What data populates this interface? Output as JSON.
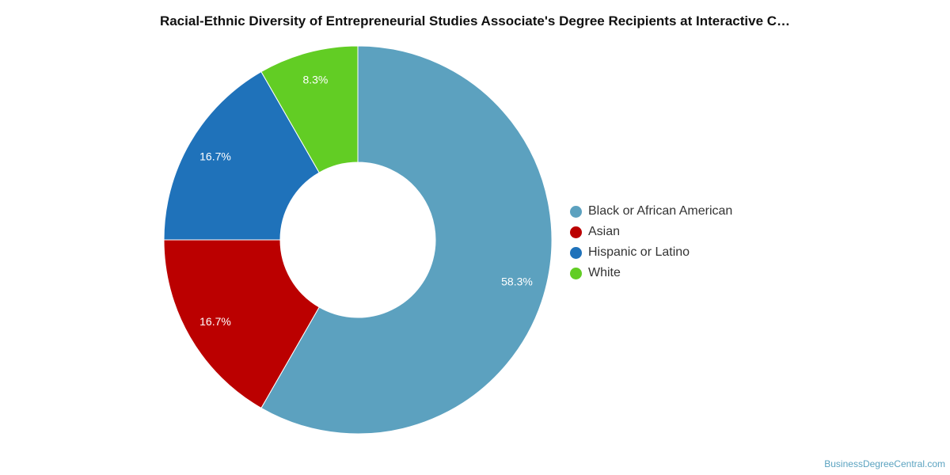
{
  "chart_data": {
    "type": "pie",
    "title": "Racial-Ethnic Diversity of Entrepreneurial Studies Associate's Degree Recipients at Interactive C…",
    "categories": [
      "Black or African American",
      "Asian",
      "Hispanic or Latino",
      "White"
    ],
    "values": [
      58.3,
      16.7,
      16.7,
      8.3
    ],
    "data_labels": [
      "58.3%",
      "16.7%",
      "16.7%",
      "8.3%"
    ],
    "colors": [
      "#5ca1bf",
      "#bb0000",
      "#1f72ba",
      "#62cd24"
    ],
    "donut": true,
    "legend_position": "right"
  },
  "credit": "BusinessDegreeCentral.com"
}
